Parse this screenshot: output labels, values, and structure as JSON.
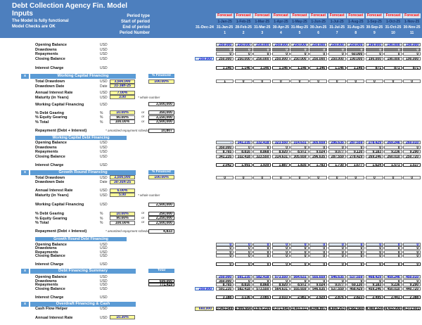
{
  "colors": {
    "band": "#4d7fbe",
    "accent": "#5b9bd5",
    "pale_blue": "#dce6f2",
    "forecast_text": "#ff0000",
    "input_yellow": "#ffff99",
    "linked_blue": "#0000dd",
    "dark_row": "#7f7f7f"
  },
  "header": {
    "title_line1": "Debt Collection Agency Fin. Model",
    "title_line2": "Inputs",
    "status_line1": "The Model is fully functional",
    "status_line2": "Model Checks are OK",
    "period_row_labels": [
      "Period type",
      "Start of period",
      "End of period",
      "Period Number"
    ],
    "actual_end_date": "31-Dec-24",
    "periods": [
      {
        "type": "Forecast",
        "start": "1-Jan-25",
        "end": "31-Jan-25",
        "num": "1"
      },
      {
        "type": "Forecast",
        "start": "1-Feb-25",
        "end": "28-Feb-25",
        "num": "2"
      },
      {
        "type": "Forecast",
        "start": "1-Mar-25",
        "end": "31-Mar-25",
        "num": "3"
      },
      {
        "type": "Forecast",
        "start": "1-Apr-25",
        "end": "30-Apr-25",
        "num": "4"
      },
      {
        "type": "Forecast",
        "start": "1-May-25",
        "end": "31-May-25",
        "num": "5"
      },
      {
        "type": "Forecast",
        "start": "1-Jun-25",
        "end": "30-Jun-25",
        "num": "6"
      },
      {
        "type": "Forecast",
        "start": "1-Jul-25",
        "end": "31-Jul-25",
        "num": "7"
      },
      {
        "type": "Forecast",
        "start": "1-Aug-25",
        "end": "31-Aug-25",
        "num": "8"
      },
      {
        "type": "Forecast",
        "start": "1-Sep-25",
        "end": "30-Sep-25",
        "num": "9"
      },
      {
        "type": "Forecast",
        "start": "1-Oct-25",
        "end": "31-Oct-25",
        "num": "10"
      },
      {
        "type": "Forecast",
        "start": "1-Nov-25",
        "end": "30-Nov-25",
        "num": "11"
      }
    ]
  },
  "lines": [
    {
      "kind": "grid",
      "label": "Opening Balance",
      "unit": "USD",
      "row_style": "opening",
      "cells": [
        "250,000",
        "250,000",
        "250,000",
        "250,000",
        "250,000",
        "250,000",
        "250,000",
        "250,000",
        "190,000",
        "190,000",
        "190,000"
      ]
    },
    {
      "kind": "grid",
      "label": "Drawdowns",
      "unit": "USD",
      "row_style": "dark",
      "cells": [
        "0",
        "0",
        "0",
        "0",
        "0",
        "0",
        "0",
        "0",
        "0",
        "0",
        "0"
      ]
    },
    {
      "kind": "grid",
      "label": "Repayments",
      "unit": "USD",
      "row_style": "plain",
      "cells": [
        "0",
        "0",
        "0",
        "0",
        "0",
        "0",
        "0",
        "60,000",
        "0",
        "0",
        "0"
      ]
    },
    {
      "kind": "grid",
      "label": "Closing Balance",
      "unit": "USD",
      "row_style": "plain",
      "left_value": "250,000",
      "left_style": "blue",
      "cells": [
        "250,000",
        "250,000",
        "250,000",
        "250,000",
        "250,000",
        "250,000",
        "250,000",
        "190,000",
        "190,000",
        "190,000",
        "190,000"
      ]
    },
    {
      "kind": "grid",
      "label": "Interest Charge",
      "unit": "USD",
      "row_style": "boxed",
      "cells": [
        "1,146",
        "1,146",
        "1,146",
        "1,146",
        "1,146",
        "1,146",
        "1,146",
        "1,146",
        "871",
        "871",
        "871"
      ]
    },
    {
      "kind": "section",
      "marker": "x",
      "label": "Working Capital Financing",
      "mini": "% Financed"
    },
    {
      "kind": "input",
      "label": "Total Drawdown",
      "unit": "USD",
      "value": "3,500,000",
      "yellow": true,
      "mini_value": "100.00%",
      "flags": [
        "1",
        "0",
        "0",
        "0",
        "0",
        "0",
        "0",
        "0",
        "0",
        "0",
        "0"
      ]
    },
    {
      "kind": "input",
      "label": "Drawdown Date",
      "unit": "Date",
      "value": "31-Jan-25",
      "yellow": true
    },
    {
      "kind": "input",
      "label": "Annual Interest Rate",
      "unit": "USD",
      "value": "7.00%",
      "yellow": true
    },
    {
      "kind": "input",
      "label": "Maturity (in Years)",
      "unit": "USD",
      "value": "3.00",
      "yellow": true,
      "note": "* whole number"
    },
    {
      "kind": "calc",
      "label": "Working Capital Financing",
      "unit": "USD",
      "value": "3,500,000"
    },
    {
      "kind": "gearing",
      "label": "% Debt Gearing",
      "unit": "%",
      "pct": "10.00%",
      "yellow": true,
      "or_text": "or",
      "value": "350,000"
    },
    {
      "kind": "gearing",
      "label": "% Equity Gearing",
      "unit": "%",
      "pct": "90.00%",
      "yellow": false,
      "or_text": "or",
      "value": "3,150,000"
    },
    {
      "kind": "gearing",
      "label": "% Total",
      "unit": "%",
      "pct": "100.00%",
      "yellow": false,
      "or_text": "or",
      "value": "3,500,000"
    },
    {
      "kind": "calc",
      "label": "Repayment (Debt + Interest)",
      "note": "* amortized repayment schedule",
      "value": "10,807"
    },
    {
      "kind": "subsection",
      "label": "Working Capital Debt Financing"
    },
    {
      "kind": "grid",
      "label": "Opening Balance",
      "unit": "USD",
      "row_style": "opening",
      "cells": [
        "-",
        "341,235",
        "332,418",
        "323,550",
        "314,631",
        "305,659",
        "296,635",
        "287,559",
        "278,429",
        "269,246",
        "260,010"
      ]
    },
    {
      "kind": "grid",
      "label": "Drawdowns",
      "unit": "USD",
      "row_style": "plain",
      "cells": [
        "350,000",
        "0",
        "0",
        "0",
        "0",
        "0",
        "0",
        "0",
        "0",
        "0",
        "0"
      ]
    },
    {
      "kind": "grid",
      "label": "Repayments",
      "unit": "USD",
      "row_style": "plain",
      "cells": [
        "8,765",
        "8,816",
        "8,868",
        "8,920",
        "8,972",
        "9,024",
        "9,077",
        "9,130",
        "9,183",
        "9,236",
        "9,290"
      ]
    },
    {
      "kind": "grid",
      "label": "Closing Balance",
      "unit": "USD",
      "row_style": "plain",
      "cells": [
        "341,235",
        "332,418",
        "323,550",
        "314,631",
        "305,659",
        "296,635",
        "287,559",
        "278,429",
        "269,246",
        "260,010",
        "250,720"
      ]
    },
    {
      "kind": "grid",
      "label": "Interest Charge",
      "unit": "USD",
      "row_style": "boxed",
      "cells": [
        "2,042",
        "1,991",
        "1,939",
        "1,887",
        "1,835",
        "1,783",
        "1,730",
        "1,677",
        "1,624",
        "1,571",
        "1,517"
      ]
    },
    {
      "kind": "section",
      "marker": "x",
      "label": "Growth Round Financing",
      "mini": "% Financed"
    },
    {
      "kind": "input",
      "label": "Total Drawdown",
      "unit": "USD",
      "value": "2,500,000",
      "yellow": true,
      "mini_value": "100.00%",
      "flags": [
        "0",
        "0",
        "0",
        "0",
        "0",
        "0",
        "0",
        "0",
        "0",
        "0",
        "0"
      ]
    },
    {
      "kind": "input",
      "label": "Drawdown Date",
      "unit": "Date",
      "value": "30-Jun-25",
      "yellow": true
    },
    {
      "kind": "input",
      "label": "Annual Interest Rate",
      "unit": "USD",
      "value": "6.00%",
      "yellow": true
    },
    {
      "kind": "input",
      "label": "Maturity (in Years)",
      "unit": "USD",
      "value": "5.00",
      "yellow": true,
      "note": "* whole number"
    },
    {
      "kind": "calc",
      "label": "Working Capital Financing",
      "unit": "USD",
      "value": "2,500,000"
    },
    {
      "kind": "gearing",
      "label": "% Debt Gearing",
      "unit": "%",
      "pct": "10.00%",
      "yellow": true,
      "or_text": "or",
      "value": "250,000"
    },
    {
      "kind": "gearing",
      "label": "% Equity Gearing",
      "unit": "%",
      "pct": "90.00%",
      "yellow": false,
      "or_text": "or",
      "value": "2,250,000"
    },
    {
      "kind": "gearing",
      "label": "% Total",
      "unit": "%",
      "pct": "100.00%",
      "yellow": false,
      "or_text": "or",
      "value": "2,500,000"
    },
    {
      "kind": "calc",
      "label": "Repayment (Debt + Interest)",
      "note": "* amortized repayment schedule",
      "value": "4,833"
    },
    {
      "kind": "subsection",
      "label": "Growth Round Debt Financing"
    },
    {
      "kind": "grid",
      "label": "Opening Balance",
      "unit": "USD",
      "row_style": "opening",
      "cells": [
        "0",
        "0",
        "0",
        "0",
        "0",
        "0",
        "0",
        "0",
        "0",
        "0",
        "0"
      ]
    },
    {
      "kind": "grid",
      "label": "Drawdowns",
      "unit": "USD",
      "row_style": "plain",
      "cells": [
        "0",
        "0",
        "0",
        "0",
        "0",
        "0",
        "0",
        "0",
        "0",
        "0",
        "0"
      ]
    },
    {
      "kind": "grid",
      "label": "Repayments",
      "unit": "USD",
      "row_style": "plain",
      "cells": [
        "0",
        "0",
        "0",
        "0",
        "0",
        "0",
        "0",
        "0",
        "0",
        "0",
        "0"
      ]
    },
    {
      "kind": "grid",
      "label": "Closing Balance",
      "unit": "USD",
      "row_style": "plain",
      "cells": [
        "0",
        "0",
        "0",
        "0",
        "0",
        "0",
        "0",
        "0",
        "0",
        "0",
        "0"
      ]
    },
    {
      "kind": "grid",
      "label": "Interest Charge",
      "unit": "USD",
      "row_style": "boxed",
      "cells": [
        "0",
        "0",
        "0",
        "0",
        "0",
        "0",
        "0",
        "0",
        "0",
        "0",
        "0"
      ]
    },
    {
      "kind": "section",
      "marker": "x",
      "label": "Debt Financing Summary",
      "mini": "Total"
    },
    {
      "kind": "grid",
      "label": "Opening Balance",
      "unit": "USD",
      "row_style": "opening",
      "cells": [
        "250,000",
        "591,235",
        "582,418",
        "573,550",
        "564,631",
        "555,659",
        "546,635",
        "537,559",
        "468,429",
        "459,246",
        "450,010"
      ]
    },
    {
      "kind": "grid",
      "label": "Drawdowns",
      "unit": "USD",
      "row_style": "plain",
      "total_value": "600,000",
      "cells": [
        "350,000",
        "0",
        "0",
        "0",
        "0",
        "0",
        "0",
        "0",
        "0",
        "0",
        "0"
      ]
    },
    {
      "kind": "grid",
      "label": "Repayments",
      "unit": "USD",
      "row_style": "plain",
      "total_value": "771,419",
      "cells": [
        "8,765",
        "8,816",
        "8,868",
        "8,920",
        "8,972",
        "9,024",
        "9,077",
        "69,130",
        "9,183",
        "9,236",
        "9,290"
      ]
    },
    {
      "kind": "grid",
      "label": "Closing Balance",
      "unit": "USD",
      "row_style": "plain",
      "left_value": "250,000",
      "left_style": "blue",
      "cells": [
        "591,235",
        "582,418",
        "573,550",
        "564,631",
        "555,659",
        "546,635",
        "537,559",
        "468,429",
        "459,246",
        "450,010",
        "440,720"
      ]
    },
    {
      "kind": "grid",
      "label": "Interest Charge",
      "unit": "USD",
      "row_style": "boxed",
      "cells": [
        "3,188",
        "3,136",
        "3,085",
        "3,033",
        "2,981",
        "2,929",
        "2,876",
        "2,823",
        "2,495",
        "2,441",
        "2,388"
      ]
    },
    {
      "kind": "section",
      "marker": "x",
      "label": "Overdraft Financing & Cash"
    },
    {
      "kind": "grid",
      "label": "Cash Flow Helper",
      "unit": "USD",
      "row_style": "boxed",
      "left_value": "660,000",
      "left_style": "yellow",
      "cells": [
        "3,943,549",
        "3,906,664",
        "3,876,230",
        "3,371,645",
        "3,403,311",
        "4,046,807",
        "4,606,263",
        "4,582,660",
        "4,469,329",
        "4,415,990",
        "4,372,601"
      ]
    },
    {
      "kind": "input",
      "label": "Annual Interest Rate",
      "unit": "USD",
      "value": "10.30%",
      "yellow": true
    }
  ]
}
